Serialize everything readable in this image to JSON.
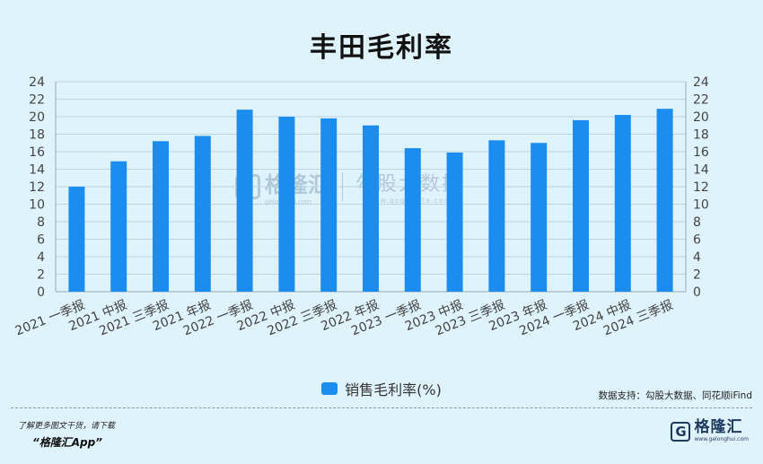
{
  "chart_data": {
    "type": "bar",
    "title": "丰田毛利率",
    "categories": [
      "2021 一季报",
      "2021 中报",
      "2021 三季报",
      "2021 年报",
      "2022 一季报",
      "2022 中报",
      "2022 三季报",
      "2022 年报",
      "2023 一季报",
      "2023 中报",
      "2023 三季报",
      "2023 年报",
      "2024 一季报",
      "2024 中报",
      "2024 三季报"
    ],
    "series": [
      {
        "name": "销售毛利率(%)",
        "values": [
          12.0,
          14.9,
          17.2,
          17.8,
          20.8,
          20.0,
          19.8,
          19.0,
          16.4,
          15.9,
          17.3,
          17.0,
          19.6,
          20.2,
          20.9
        ],
        "color": "#1b8df0"
      }
    ],
    "ylim": [
      0,
      24
    ],
    "yticks": [
      0,
      2,
      4,
      6,
      8,
      10,
      12,
      14,
      16,
      18,
      20,
      22,
      24
    ],
    "dual_y_axis": true,
    "grid": true,
    "legend_position": "bottom-center"
  },
  "source_note": "数据支持：勾股大数据、同花顺iFind",
  "footer": {
    "note": "了解更多图文干货，请下载",
    "app": "“格隆汇App”",
    "logo_mark": "G",
    "logo_name": "格隆汇",
    "logo_domain": "www.gelonghui.com"
  },
  "watermark": {
    "left_name": "格隆汇",
    "left_domain": "gelonghui.com",
    "right_name": "勾股大数据",
    "right_domain": "www.gogudata.com"
  },
  "colors": {
    "background": "#dff3fc",
    "bar": "#1b8df0"
  }
}
